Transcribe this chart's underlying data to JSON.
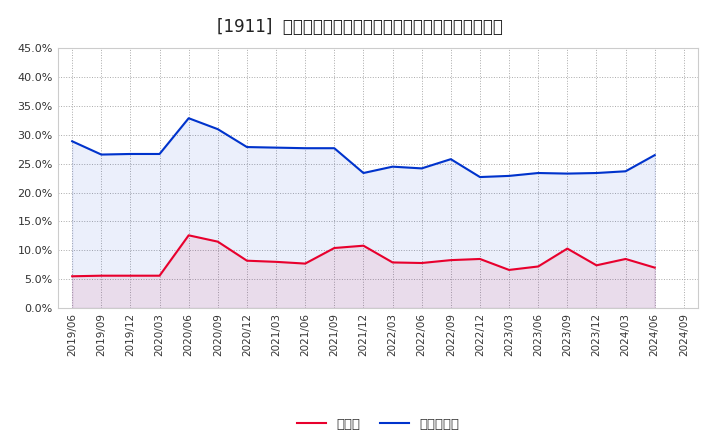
{
  "title": "[1911]  現預金、有利子負債の総資産に対する比率の推移",
  "x_labels": [
    "2019/06",
    "2019/09",
    "2019/12",
    "2020/03",
    "2020/06",
    "2020/09",
    "2020/12",
    "2021/03",
    "2021/06",
    "2021/09",
    "2021/12",
    "2022/03",
    "2022/06",
    "2022/09",
    "2022/12",
    "2023/03",
    "2023/06",
    "2023/09",
    "2023/12",
    "2024/03",
    "2024/06",
    "2024/09"
  ],
  "cash": [
    0.055,
    0.056,
    0.056,
    0.056,
    0.126,
    0.115,
    0.082,
    0.08,
    0.077,
    0.104,
    0.108,
    0.079,
    0.078,
    0.083,
    0.085,
    0.066,
    0.072,
    0.103,
    0.074,
    0.085,
    0.07,
    null
  ],
  "debt": [
    0.289,
    0.266,
    0.267,
    0.267,
    0.329,
    0.31,
    0.279,
    0.278,
    0.277,
    0.277,
    0.234,
    0.245,
    0.242,
    0.258,
    0.227,
    0.229,
    0.234,
    0.233,
    0.234,
    0.237,
    0.265,
    null
  ],
  "cash_color": "#e8002d",
  "debt_color": "#0033cc",
  "background_color": "#ffffff",
  "grid_color": "#aaaaaa",
  "ylim": [
    0.0,
    0.45
  ],
  "yticks": [
    0.0,
    0.05,
    0.1,
    0.15,
    0.2,
    0.25,
    0.3,
    0.35,
    0.4,
    0.45
  ],
  "legend_cash": "現預金",
  "legend_debt": "有利子負債",
  "title_fontsize": 12
}
